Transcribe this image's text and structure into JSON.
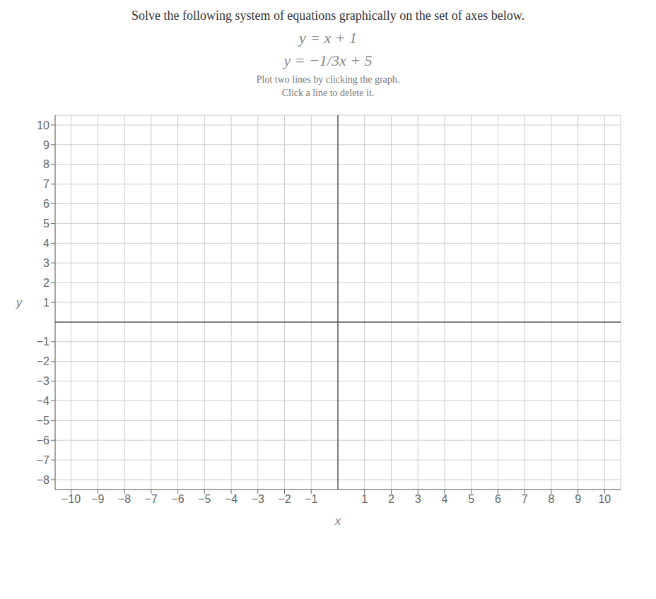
{
  "chart_data": {
    "type": "line",
    "title": "Solve the following system of equations graphically on the set of axes below.",
    "annotations": [
      "y = x + 1",
      "y = −1/3x + 5",
      "Plot two lines by clicking the graph.",
      "Click a line to delete it."
    ],
    "x_label": "x",
    "y_label": "y",
    "xlim": [
      -10.6,
      10.6
    ],
    "ylim": [
      -8.5,
      10.5
    ],
    "xticks": [
      {
        "value": -10,
        "label": "−10"
      },
      {
        "value": -9,
        "label": "−9"
      },
      {
        "value": -8,
        "label": "−8"
      },
      {
        "value": -7,
        "label": "−7"
      },
      {
        "value": -6,
        "label": "−6"
      },
      {
        "value": -5,
        "label": "−5"
      },
      {
        "value": -4,
        "label": "−4"
      },
      {
        "value": -3,
        "label": "−3"
      },
      {
        "value": -2,
        "label": "−2"
      },
      {
        "value": -1,
        "label": "−1"
      },
      1,
      2,
      3,
      4,
      5,
      6,
      7,
      8,
      9,
      10
    ],
    "yticks": [
      {
        "value": -8,
        "label": "−8"
      },
      {
        "value": -7,
        "label": "−7"
      },
      {
        "value": -6,
        "label": "−6"
      },
      {
        "value": -5,
        "label": "−5"
      },
      {
        "value": -4,
        "label": "−4"
      },
      {
        "value": -3,
        "label": "−3"
      },
      {
        "value": -2,
        "label": "−2"
      },
      {
        "value": -1,
        "label": "−1"
      },
      1,
      2,
      3,
      4,
      5,
      6,
      7,
      8,
      9,
      10
    ],
    "grid": true,
    "series": []
  }
}
